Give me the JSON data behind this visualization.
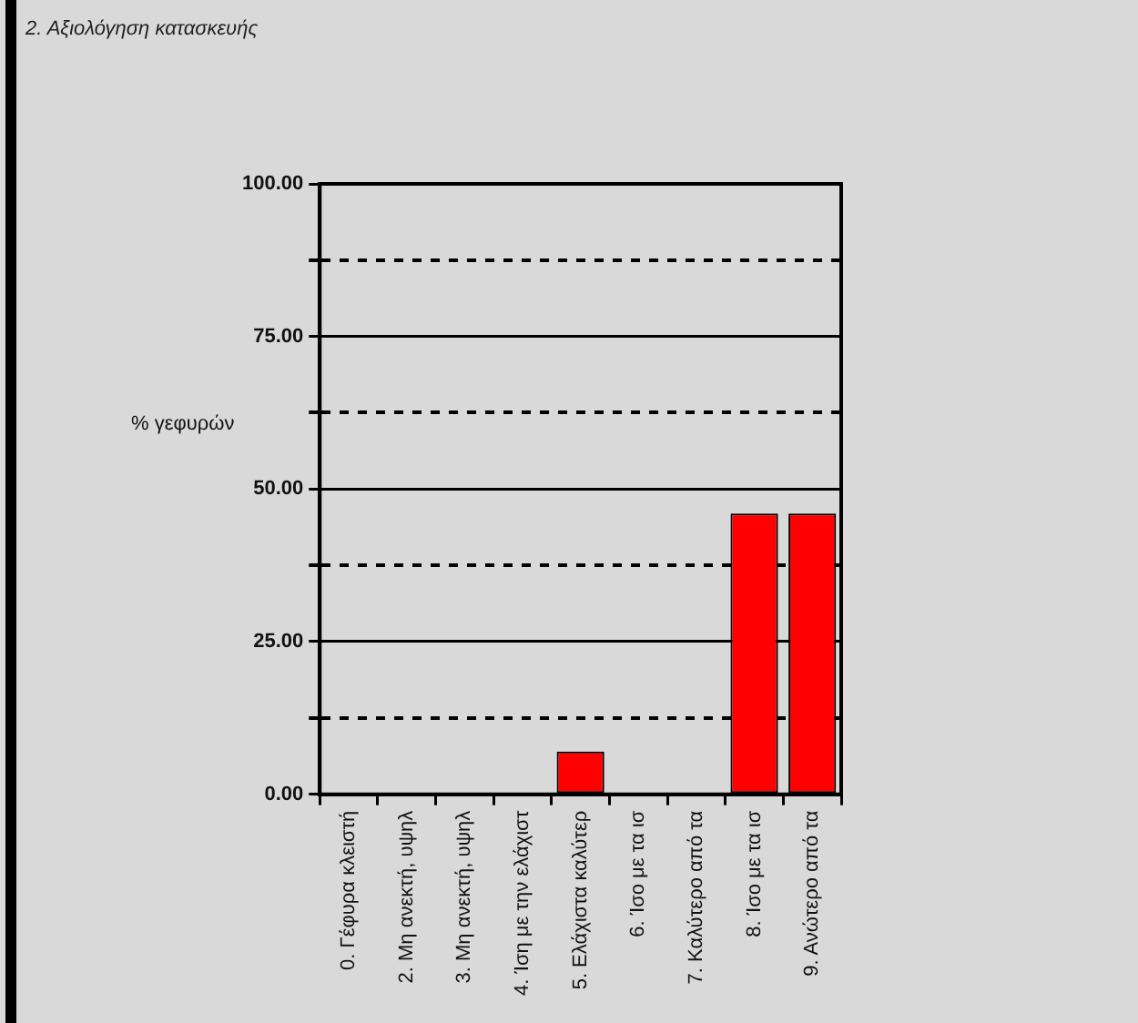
{
  "chart_data": {
    "type": "bar",
    "title": "2. Αξιολόγηση κατασκευής",
    "ylabel": "% γεφυρών",
    "categories": [
      "0. Γέφυρα κλειστή",
      "2. Μη ανεκτή, υψηλ",
      "3. Μη ανεκτή, υψηλ",
      "4. Ίση με την ελάχιστ",
      "5. Ελάχιστα καλύτερ",
      "6. Ίσο με τα ισ",
      "7. Καλύτερο από τα",
      "8. Ίσο με τα ισ",
      "9. Ανώτερο από τα"
    ],
    "values": [
      0,
      0,
      0,
      0,
      7,
      0,
      0,
      46,
      46
    ],
    "color": "#ff0000",
    "ylim": [
      0,
      100
    ],
    "yticks": [
      {
        "value": 0,
        "label": "0.00"
      },
      {
        "value": 12.5,
        "label": null
      },
      {
        "value": 25,
        "label": "25.00"
      },
      {
        "value": 37.5,
        "label": null
      },
      {
        "value": 50,
        "label": "50.00"
      },
      {
        "value": 62.5,
        "label": null
      },
      {
        "value": 75,
        "label": "75.00"
      },
      {
        "value": 87.5,
        "label": null
      },
      {
        "value": 100,
        "label": "100.00"
      }
    ],
    "grid": "y"
  }
}
